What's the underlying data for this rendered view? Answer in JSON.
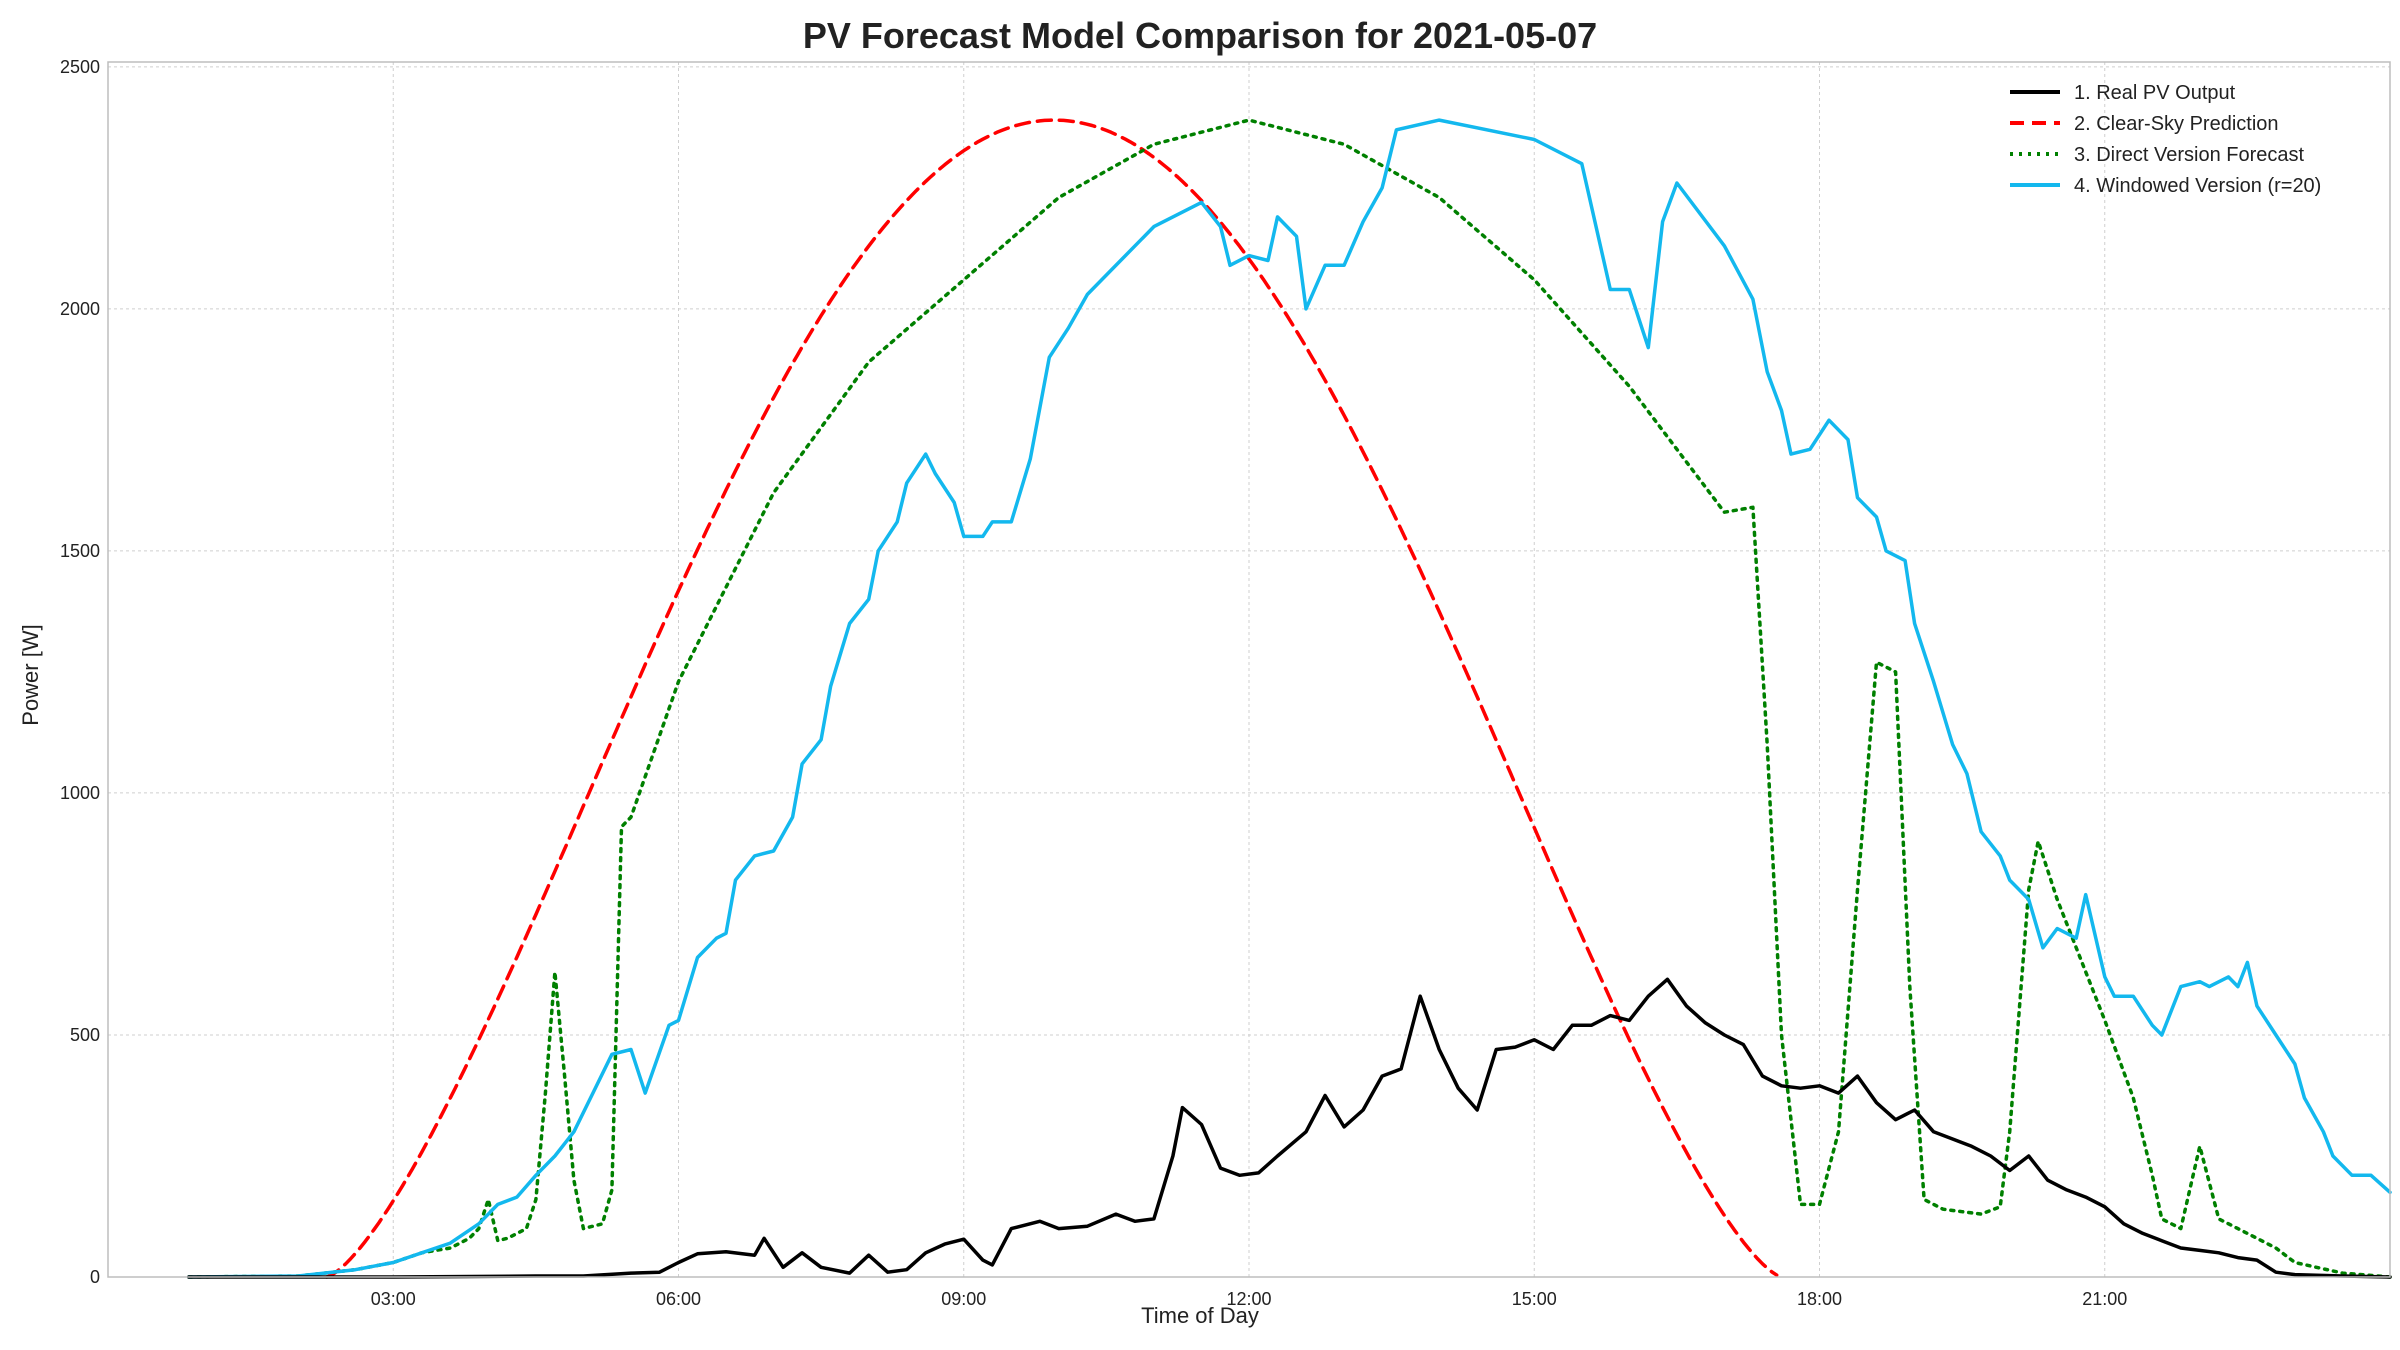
{
  "chart_data": {
    "type": "line",
    "title": "PV Forecast Model Comparison for 2021-05-07",
    "xlabel": "Time of Day",
    "ylabel": "Power [W]",
    "x_unit": "hours",
    "xlim": [
      0.0,
      24.0
    ],
    "ylim": [
      0,
      2510
    ],
    "xticks": [
      {
        "value": 3,
        "label": "03:00"
      },
      {
        "value": 6,
        "label": "06:00"
      },
      {
        "value": 9,
        "label": "09:00"
      },
      {
        "value": 12,
        "label": "12:00"
      },
      {
        "value": 15,
        "label": "15:00"
      },
      {
        "value": 18,
        "label": "18:00"
      },
      {
        "value": 21,
        "label": "21:00"
      }
    ],
    "yticks": [
      {
        "value": 0,
        "label": "0"
      },
      {
        "value": 500,
        "label": "500"
      },
      {
        "value": 1000,
        "label": "1000"
      },
      {
        "value": 1500,
        "label": "1500"
      },
      {
        "value": 2000,
        "label": "2000"
      },
      {
        "value": 2500,
        "label": "2500"
      }
    ],
    "grid": true,
    "legend_position": "top-right",
    "series": [
      {
        "name": "1. Real PV Output",
        "color": "#000000",
        "style": "solid",
        "points": [
          [
            0.85,
            0
          ],
          [
            3.0,
            0
          ],
          [
            4.5,
            2
          ],
          [
            5.0,
            2
          ],
          [
            5.5,
            8
          ],
          [
            5.8,
            10
          ],
          [
            6.0,
            30
          ],
          [
            6.2,
            48
          ],
          [
            6.5,
            52
          ],
          [
            6.8,
            45
          ],
          [
            6.9,
            80
          ],
          [
            7.1,
            20
          ],
          [
            7.3,
            50
          ],
          [
            7.5,
            20
          ],
          [
            7.8,
            8
          ],
          [
            8.0,
            45
          ],
          [
            8.2,
            10
          ],
          [
            8.4,
            15
          ],
          [
            8.6,
            50
          ],
          [
            8.8,
            68
          ],
          [
            9.0,
            78
          ],
          [
            9.2,
            35
          ],
          [
            9.3,
            25
          ],
          [
            9.5,
            100
          ],
          [
            9.8,
            115
          ],
          [
            10.0,
            100
          ],
          [
            10.3,
            105
          ],
          [
            10.6,
            130
          ],
          [
            10.8,
            115
          ],
          [
            11.0,
            120
          ],
          [
            11.2,
            250
          ],
          [
            11.3,
            350
          ],
          [
            11.5,
            315
          ],
          [
            11.7,
            225
          ],
          [
            11.9,
            210
          ],
          [
            12.1,
            215
          ],
          [
            12.3,
            250
          ],
          [
            12.6,
            300
          ],
          [
            12.8,
            375
          ],
          [
            13.0,
            310
          ],
          [
            13.2,
            345
          ],
          [
            13.4,
            415
          ],
          [
            13.6,
            430
          ],
          [
            13.8,
            580
          ],
          [
            14.0,
            470
          ],
          [
            14.2,
            390
          ],
          [
            14.4,
            345
          ],
          [
            14.6,
            470
          ],
          [
            14.8,
            475
          ],
          [
            15.0,
            490
          ],
          [
            15.2,
            470
          ],
          [
            15.4,
            520
          ],
          [
            15.6,
            520
          ],
          [
            15.8,
            540
          ],
          [
            16.0,
            530
          ],
          [
            16.2,
            580
          ],
          [
            16.4,
            615
          ],
          [
            16.6,
            560
          ],
          [
            16.8,
            525
          ],
          [
            17.0,
            500
          ],
          [
            17.2,
            480
          ],
          [
            17.4,
            415
          ],
          [
            17.6,
            395
          ],
          [
            17.8,
            390
          ],
          [
            18.0,
            395
          ],
          [
            18.2,
            380
          ],
          [
            18.4,
            415
          ],
          [
            18.6,
            360
          ],
          [
            18.8,
            325
          ],
          [
            19.0,
            345
          ],
          [
            19.2,
            300
          ],
          [
            19.4,
            285
          ],
          [
            19.6,
            270
          ],
          [
            19.8,
            250
          ],
          [
            20.0,
            220
          ],
          [
            20.2,
            250
          ],
          [
            20.4,
            200
          ],
          [
            20.6,
            180
          ],
          [
            20.8,
            165
          ],
          [
            21.0,
            145
          ],
          [
            21.2,
            110
          ],
          [
            21.4,
            90
          ],
          [
            21.6,
            75
          ],
          [
            21.8,
            60
          ],
          [
            22.0,
            55
          ],
          [
            22.2,
            50
          ],
          [
            22.4,
            40
          ],
          [
            22.6,
            35
          ],
          [
            22.8,
            10
          ],
          [
            23.0,
            5
          ],
          [
            23.5,
            2
          ],
          [
            24.0,
            0
          ]
        ]
      },
      {
        "name": "2. Clear-Sky Prediction",
        "color": "#ff0000",
        "style": "dashed",
        "curve": "clear-sky"
      },
      {
        "name": "3. Direct Version Forecast",
        "color": "#008000",
        "style": "dotted",
        "points": [
          [
            0.85,
            0
          ],
          [
            2.0,
            2
          ],
          [
            2.6,
            15
          ],
          [
            3.0,
            30
          ],
          [
            3.3,
            50
          ],
          [
            3.6,
            60
          ],
          [
            3.8,
            80
          ],
          [
            3.9,
            100
          ],
          [
            4.0,
            160
          ],
          [
            4.1,
            75
          ],
          [
            4.2,
            80
          ],
          [
            4.4,
            100
          ],
          [
            4.5,
            160
          ],
          [
            4.6,
            380
          ],
          [
            4.7,
            630
          ],
          [
            4.8,
            420
          ],
          [
            4.9,
            200
          ],
          [
            5.0,
            100
          ],
          [
            5.2,
            110
          ],
          [
            5.3,
            180
          ],
          [
            5.4,
            930
          ],
          [
            5.5,
            950
          ],
          [
            6.0,
            1230
          ],
          [
            7.0,
            1620
          ],
          [
            8.0,
            1890
          ],
          [
            9.0,
            2060
          ],
          [
            10.0,
            2230
          ],
          [
            11.0,
            2340
          ],
          [
            12.0,
            2390
          ],
          [
            13.0,
            2340
          ],
          [
            14.0,
            2230
          ],
          [
            15.0,
            2060
          ],
          [
            16.0,
            1840
          ],
          [
            17.0,
            1580
          ],
          [
            17.3,
            1590
          ],
          [
            17.45,
            1100
          ],
          [
            17.6,
            500
          ],
          [
            17.8,
            150
          ],
          [
            18.0,
            150
          ],
          [
            18.2,
            300
          ],
          [
            18.4,
            800
          ],
          [
            18.6,
            1270
          ],
          [
            18.8,
            1250
          ],
          [
            18.95,
            600
          ],
          [
            19.1,
            160
          ],
          [
            19.3,
            140
          ],
          [
            19.5,
            135
          ],
          [
            19.7,
            130
          ],
          [
            19.9,
            145
          ],
          [
            20.0,
            300
          ],
          [
            20.2,
            800
          ],
          [
            20.3,
            900
          ],
          [
            20.5,
            780
          ],
          [
            21.0,
            530
          ],
          [
            21.3,
            370
          ],
          [
            21.5,
            210
          ],
          [
            21.6,
            120
          ],
          [
            21.8,
            100
          ],
          [
            22.0,
            270
          ],
          [
            22.2,
            120
          ],
          [
            22.4,
            100
          ],
          [
            22.6,
            80
          ],
          [
            22.8,
            60
          ],
          [
            23.0,
            30
          ],
          [
            23.5,
            8
          ],
          [
            24.0,
            0
          ]
        ]
      },
      {
        "name": "4. Windowed Version (r=20)",
        "color": "#13b8ee",
        "style": "solid",
        "points": [
          [
            0.85,
            0
          ],
          [
            2.0,
            2
          ],
          [
            2.6,
            15
          ],
          [
            3.0,
            30
          ],
          [
            3.3,
            50
          ],
          [
            3.6,
            70
          ],
          [
            3.9,
            110
          ],
          [
            4.1,
            150
          ],
          [
            4.3,
            165
          ],
          [
            4.5,
            210
          ],
          [
            4.7,
            250
          ],
          [
            4.9,
            300
          ],
          [
            5.1,
            380
          ],
          [
            5.3,
            460
          ],
          [
            5.5,
            470
          ],
          [
            5.65,
            380
          ],
          [
            5.9,
            520
          ],
          [
            6.0,
            530
          ],
          [
            6.2,
            660
          ],
          [
            6.4,
            700
          ],
          [
            6.5,
            710
          ],
          [
            6.6,
            820
          ],
          [
            6.8,
            870
          ],
          [
            7.0,
            880
          ],
          [
            7.2,
            950
          ],
          [
            7.3,
            1060
          ],
          [
            7.5,
            1110
          ],
          [
            7.6,
            1220
          ],
          [
            7.8,
            1350
          ],
          [
            8.0,
            1400
          ],
          [
            8.1,
            1500
          ],
          [
            8.3,
            1560
          ],
          [
            8.4,
            1640
          ],
          [
            8.6,
            1700
          ],
          [
            8.7,
            1660
          ],
          [
            8.9,
            1600
          ],
          [
            9.0,
            1530
          ],
          [
            9.2,
            1530
          ],
          [
            9.3,
            1560
          ],
          [
            9.5,
            1560
          ],
          [
            9.7,
            1690
          ],
          [
            9.9,
            1900
          ],
          [
            10.1,
            1960
          ],
          [
            10.3,
            2030
          ],
          [
            10.5,
            2070
          ],
          [
            11.0,
            2170
          ],
          [
            11.5,
            2220
          ],
          [
            11.7,
            2170
          ],
          [
            11.8,
            2090
          ],
          [
            12.0,
            2110
          ],
          [
            12.2,
            2100
          ],
          [
            12.3,
            2190
          ],
          [
            12.5,
            2150
          ],
          [
            12.6,
            2000
          ],
          [
            12.8,
            2090
          ],
          [
            13.0,
            2090
          ],
          [
            13.2,
            2180
          ],
          [
            13.4,
            2250
          ],
          [
            13.55,
            2370
          ],
          [
            14.0,
            2390
          ],
          [
            15.0,
            2350
          ],
          [
            15.5,
            2300
          ],
          [
            15.8,
            2040
          ],
          [
            16.0,
            2040
          ],
          [
            16.2,
            1920
          ],
          [
            16.35,
            2180
          ],
          [
            16.5,
            2260
          ],
          [
            17.0,
            2130
          ],
          [
            17.3,
            2020
          ],
          [
            17.45,
            1870
          ],
          [
            17.6,
            1790
          ],
          [
            17.7,
            1700
          ],
          [
            17.9,
            1710
          ],
          [
            18.1,
            1770
          ],
          [
            18.3,
            1730
          ],
          [
            18.4,
            1610
          ],
          [
            18.6,
            1570
          ],
          [
            18.7,
            1500
          ],
          [
            18.9,
            1480
          ],
          [
            19.0,
            1350
          ],
          [
            19.2,
            1230
          ],
          [
            19.4,
            1100
          ],
          [
            19.55,
            1040
          ],
          [
            19.7,
            920
          ],
          [
            19.9,
            870
          ],
          [
            20.0,
            820
          ],
          [
            20.2,
            780
          ],
          [
            20.35,
            680
          ],
          [
            20.5,
            720
          ],
          [
            20.7,
            700
          ],
          [
            20.8,
            790
          ],
          [
            21.0,
            620
          ],
          [
            21.1,
            580
          ],
          [
            21.3,
            580
          ],
          [
            21.5,
            520
          ],
          [
            21.6,
            500
          ],
          [
            21.8,
            600
          ],
          [
            22.0,
            610
          ],
          [
            22.1,
            600
          ],
          [
            22.3,
            620
          ],
          [
            22.4,
            600
          ],
          [
            22.5,
            650
          ],
          [
            22.6,
            560
          ],
          [
            22.8,
            500
          ],
          [
            23.0,
            440
          ],
          [
            23.1,
            370
          ],
          [
            23.3,
            300
          ],
          [
            23.4,
            250
          ],
          [
            23.6,
            210
          ],
          [
            23.8,
            210
          ],
          [
            24.0,
            175
          ]
        ]
      }
    ]
  }
}
